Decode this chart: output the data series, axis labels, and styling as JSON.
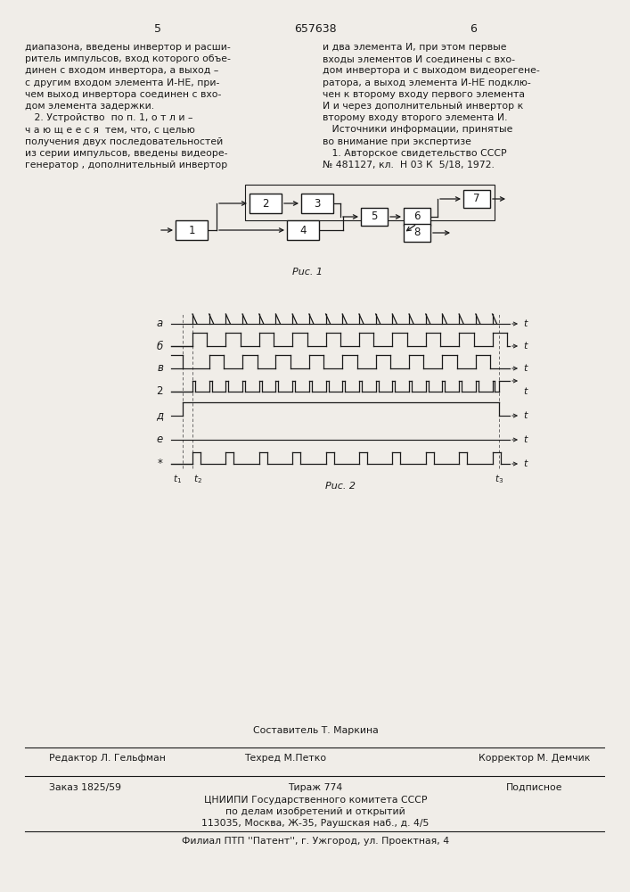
{
  "title": "657638",
  "page_left": "5",
  "page_right": "6",
  "bg_color": "#f0ede8",
  "left_column_text": [
    "диапазона, введены инвертор и расши-",
    "ритель импульсов, вход которого объе-",
    "динен с входом инвертора, а выход –",
    "с другим входом элемента И-НЕ, при-",
    "чем выход инвертора соединен с вхо-",
    "дом элемента задержки.",
    "   2. Устройство  по п. 1, о т л и –",
    "ч а ю щ е е с я  тем, что, с целью",
    "получения двух последовательностей",
    "из серии импульсов, введены видеоре-",
    "генератор , дополнительный инвертор"
  ],
  "right_column_text": [
    "и два элемента И, при этом первые",
    "входы элементов И соединены с вхо-",
    "дом инвертора и с выходом видеорегене-",
    "ратора, а выход элемента И-НЕ подклю-",
    "чен к второму входу первого элемента",
    "И и через дополнительный инвертор к",
    "второму входу второго элемента И.",
    "   Источники информации, принятые",
    "во внимание при экспертизе",
    "   1. Авторское свидетельство СССР",
    "№ 481127, кл.  Н 03 К  5/18, 1972."
  ]
}
